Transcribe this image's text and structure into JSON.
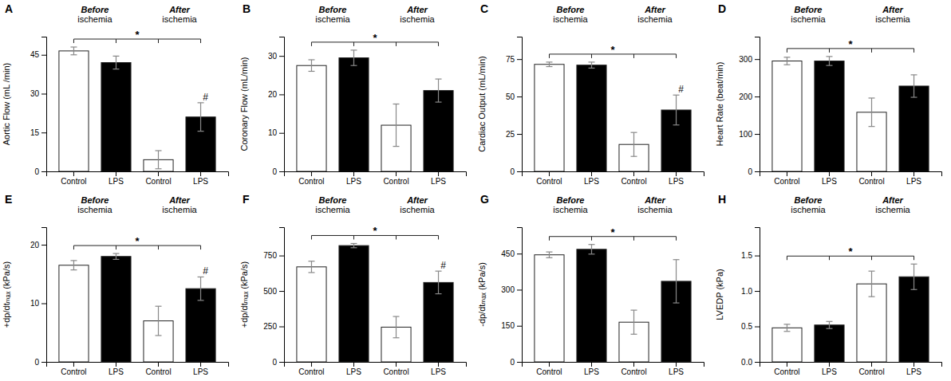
{
  "chart_data": [
    {
      "type": "bar",
      "title": "A",
      "ylabel": "Aortic Flow (mL /min)",
      "categories": [
        "Control",
        "LPS",
        "Control",
        "LPS"
      ],
      "values": [
        46.5,
        42.0,
        4.5,
        21.0
      ],
      "errors": [
        1.5,
        2.5,
        3.5,
        5.5
      ],
      "colors": [
        "white",
        "black",
        "white",
        "black"
      ],
      "ylim": [
        0,
        52
      ],
      "yticks": [
        0,
        15,
        30,
        45
      ],
      "groups": [
        {
          "label": "Before",
          "sublabel": "ischemia",
          "members": [
            0,
            1
          ]
        },
        {
          "label": "After",
          "sublabel": "ischemia",
          "members": [
            2,
            3
          ]
        }
      ],
      "annotations": [
        {
          "text": "*",
          "from": 0,
          "to": 3
        },
        {
          "text": "#",
          "at": 3
        }
      ]
    },
    {
      "type": "bar",
      "title": "B",
      "ylabel": "Coronary Flow (mL/min)",
      "categories": [
        "Control",
        "LPS",
        "Control",
        "LPS"
      ],
      "values": [
        27.5,
        29.5,
        12.0,
        21.0
      ],
      "errors": [
        1.5,
        2.0,
        5.5,
        3.0
      ],
      "colors": [
        "white",
        "black",
        "white",
        "black"
      ],
      "ylim": [
        0,
        35
      ],
      "yticks": [
        0,
        10,
        20,
        30
      ],
      "groups": [
        {
          "label": "Before",
          "sublabel": "ischemia",
          "members": [
            0,
            1
          ]
        },
        {
          "label": "After",
          "sublabel": "ischemia",
          "members": [
            2,
            3
          ]
        }
      ],
      "annotations": [
        {
          "text": "*",
          "from": 0,
          "to": 3
        }
      ]
    },
    {
      "type": "bar",
      "title": "C",
      "ylabel": "Cardiac Output (mL/min)",
      "categories": [
        "Control",
        "LPS",
        "Control",
        "LPS"
      ],
      "values": [
        71.5,
        71.0,
        18.0,
        41.0
      ],
      "errors": [
        1.5,
        2.0,
        8.0,
        10.0
      ],
      "colors": [
        "white",
        "black",
        "white",
        "black"
      ],
      "ylim": [
        0,
        90
      ],
      "yticks": [
        0,
        25,
        50,
        75
      ],
      "groups": [
        {
          "label": "Before",
          "sublabel": "ischemia",
          "members": [
            0,
            1
          ]
        },
        {
          "label": "After",
          "sublabel": "ischemia",
          "members": [
            2,
            3
          ]
        }
      ],
      "annotations": [
        {
          "text": "*",
          "from": 0,
          "to": 3
        },
        {
          "text": "#",
          "at": 3
        }
      ]
    },
    {
      "type": "bar",
      "title": "D",
      "ylabel": "Heart Rate (beat/min)",
      "categories": [
        "Control",
        "LPS",
        "Control",
        "LPS"
      ],
      "values": [
        295.0,
        295.0,
        158.0,
        228.0
      ],
      "errors": [
        10.0,
        12.0,
        38.0,
        30.0
      ],
      "colors": [
        "white",
        "black",
        "white",
        "black"
      ],
      "ylim": [
        0,
        360
      ],
      "yticks": [
        0,
        100,
        200,
        300
      ],
      "groups": [
        {
          "label": "Before",
          "sublabel": "ischemia",
          "members": [
            0,
            1
          ]
        },
        {
          "label": "After",
          "sublabel": "ischemia",
          "members": [
            2,
            3
          ]
        }
      ],
      "annotations": [
        {
          "text": "*",
          "from": 0,
          "to": 3
        }
      ]
    },
    {
      "type": "bar",
      "title": "E",
      "ylabel": "+dp/dtₘₐₓ  (kPa/s)",
      "categories": [
        "Control",
        "LPS",
        "Control",
        "LPS"
      ],
      "values": [
        16.5,
        18.0,
        7.0,
        12.5
      ],
      "errors": [
        0.8,
        0.5,
        2.5,
        2.0
      ],
      "colors": [
        "white",
        "black",
        "white",
        "black"
      ],
      "ylim": [
        0,
        23
      ],
      "yticks": [
        0,
        10,
        20
      ],
      "groups": [
        {
          "label": "Before",
          "sublabel": "ischemia",
          "members": [
            0,
            1
          ]
        },
        {
          "label": "After",
          "sublabel": "ischemia",
          "members": [
            2,
            3
          ]
        }
      ],
      "annotations": [
        {
          "text": "*",
          "from": 0,
          "to": 3
        },
        {
          "text": "#",
          "at": 3
        }
      ]
    },
    {
      "type": "bar",
      "title": "F",
      "ylabel": "+dp/dtₘₐₓ (kPa/s)",
      "categories": [
        "Control",
        "LPS",
        "Control",
        "LPS"
      ],
      "values": [
        670.0,
        820.0,
        245.0,
        560.0
      ],
      "errors": [
        40.0,
        15.0,
        75.0,
        80.0
      ],
      "colors": [
        "white",
        "black",
        "white",
        "black"
      ],
      "ylim": [
        0,
        950
      ],
      "yticks": [
        0,
        250,
        500,
        750
      ],
      "groups": [
        {
          "label": "Before",
          "sublabel": "ischemia",
          "members": [
            0,
            1
          ]
        },
        {
          "label": "After",
          "sublabel": "ischemia",
          "members": [
            2,
            3
          ]
        }
      ],
      "annotations": [
        {
          "text": "*",
          "from": 0,
          "to": 3
        },
        {
          "text": "#",
          "at": 3
        }
      ]
    },
    {
      "type": "bar",
      "title": "G",
      "ylabel": "-dp/dtₘₐₓ (kPa/s)",
      "categories": [
        "Control",
        "LPS",
        "Control",
        "LPS"
      ],
      "values": [
        445.0,
        468.0,
        165.0,
        335.0
      ],
      "errors": [
        12.0,
        20.0,
        50.0,
        90.0
      ],
      "colors": [
        "white",
        "black",
        "white",
        "black"
      ],
      "ylim": [
        0,
        560
      ],
      "yticks": [
        0,
        150,
        300,
        450
      ],
      "groups": [
        {
          "label": "Before",
          "sublabel": "ischemia",
          "members": [
            0,
            1
          ]
        },
        {
          "label": "After",
          "sublabel": "ischemia",
          "members": [
            2,
            3
          ]
        }
      ],
      "annotations": [
        {
          "text": "*",
          "from": 0,
          "to": 3
        }
      ]
    },
    {
      "type": "bar",
      "title": "H",
      "ylabel": "LVEDP (kPa)",
      "categories": [
        "Control",
        "LPS",
        "Control",
        "LPS"
      ],
      "values": [
        0.48,
        0.52,
        1.1,
        1.2
      ],
      "errors": [
        0.05,
        0.05,
        0.18,
        0.18
      ],
      "colors": [
        "white",
        "black",
        "white",
        "black"
      ],
      "ylim": [
        0,
        1.9
      ],
      "yticks": [
        {
          "value": 0,
          "label": "0.0"
        },
        0.5,
        {
          "value": 1,
          "label": "1.0"
        },
        1.5
      ],
      "groups": [
        {
          "label": "Before",
          "sublabel": "ischemia",
          "members": [
            0,
            1
          ]
        },
        {
          "label": "After",
          "sublabel": "ischemia",
          "members": [
            2,
            3
          ]
        }
      ],
      "annotations": [
        {
          "text": "*",
          "from": 0,
          "to": 3
        }
      ]
    }
  ]
}
